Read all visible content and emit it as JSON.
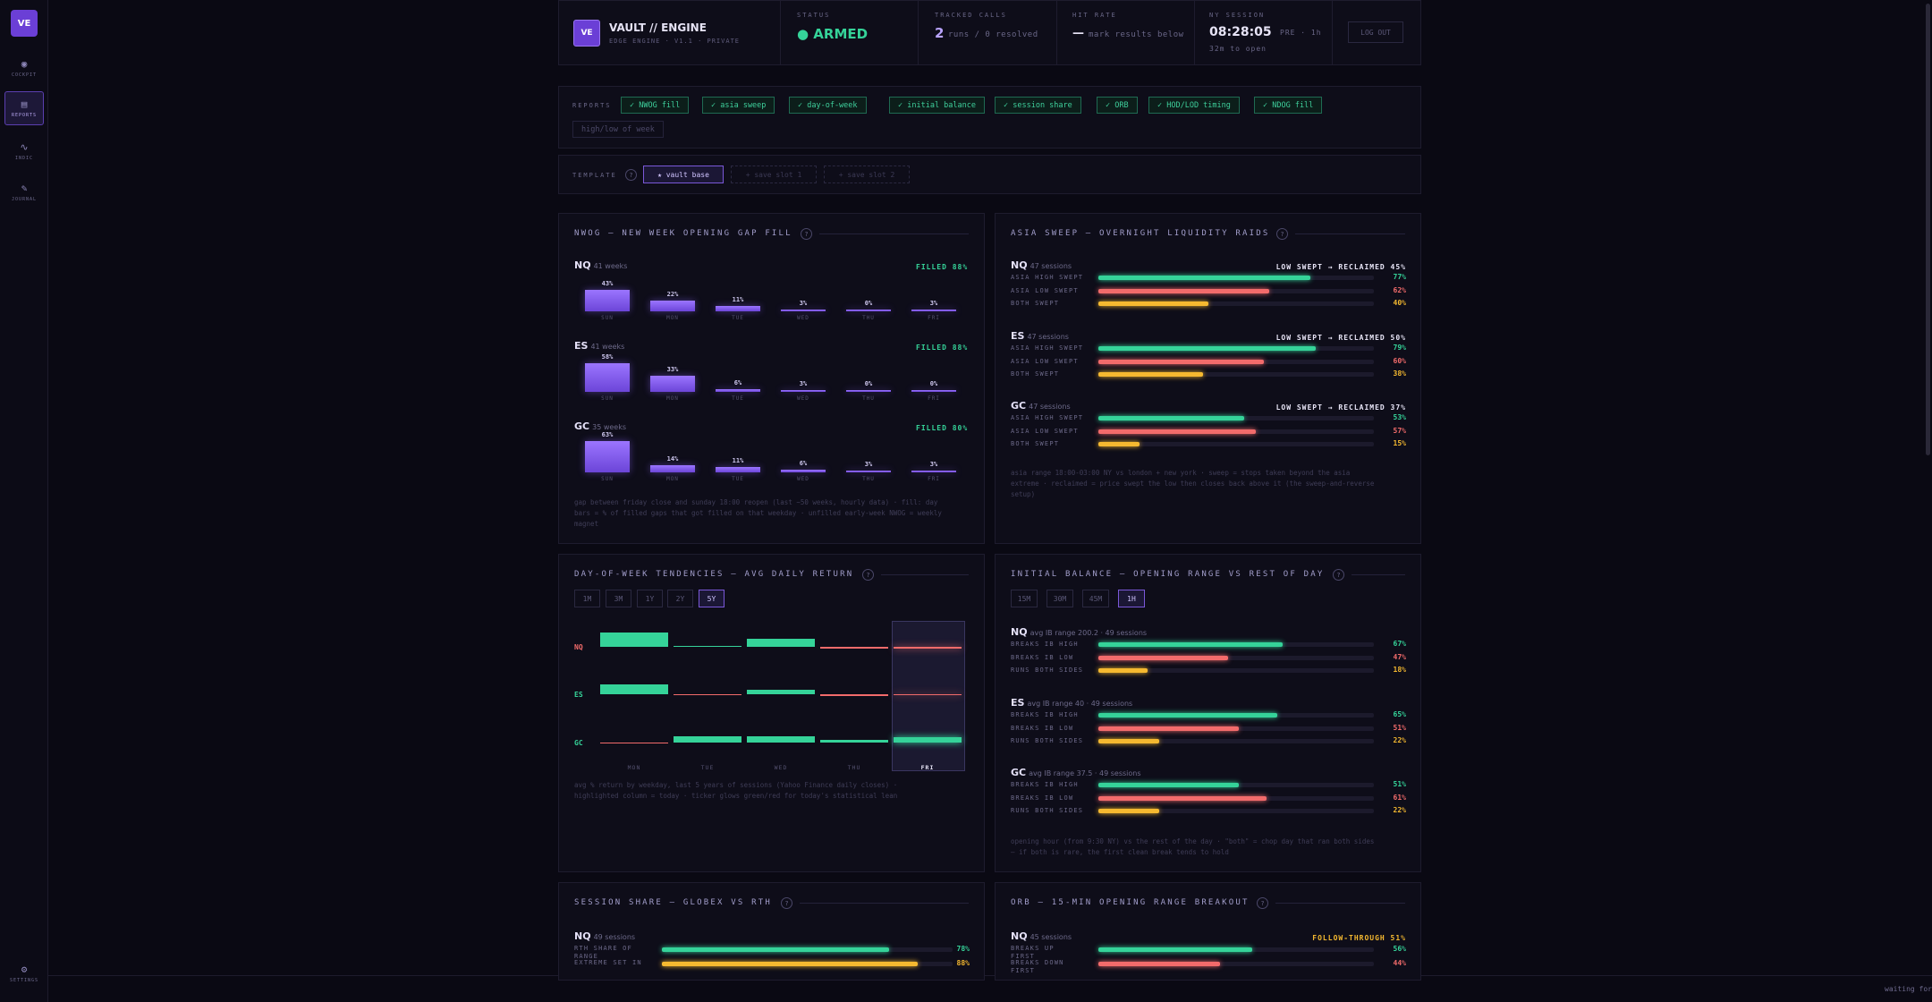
{
  "sidebar": {
    "logo": "VE",
    "items": [
      {
        "label": "COCKPIT",
        "icon": "◉"
      },
      {
        "label": "REPORTS",
        "icon": "▤"
      },
      {
        "label": "INDIC",
        "icon": "∿"
      },
      {
        "label": "JOURNAL",
        "icon": "✎"
      }
    ],
    "settings": {
      "label": "SETTINGS",
      "icon": "⚙"
    }
  },
  "header": {
    "logo": "VE",
    "title": "VAULT // ENGINE",
    "subtitle": "EDGE ENGINE · V1.1 · PRIVATE",
    "status_label": "STATUS",
    "status_value": "● ARMED",
    "tracked_label": "TRACKED CALLS",
    "tracked_count": "2",
    "tracked_detail": "runs / 0 resolved",
    "hit_label": "HIT RATE",
    "hit_value": "—",
    "hit_detail": "mark results below",
    "session_label": "NY SESSION",
    "session_time": "08:28:05",
    "session_phase": "PRE · 1h",
    "session_open": "32m to open",
    "logout": "LOG OUT"
  },
  "reports": {
    "label": "REPORTS",
    "chips": [
      {
        "label": "✓ NWOG fill",
        "on": true
      },
      {
        "label": "✓ asia sweep",
        "on": true
      },
      {
        "label": "✓ day-of-week",
        "on": true
      },
      {
        "label": "✓ initial balance",
        "on": true
      },
      {
        "label": "✓ session share",
        "on": true
      },
      {
        "label": "✓ ORB",
        "on": true
      },
      {
        "label": "✓ HOD/LOD timing",
        "on": true
      },
      {
        "label": "✓ NDOG fill",
        "on": true
      },
      {
        "label": "high/low of week",
        "on": false
      }
    ]
  },
  "template": {
    "label": "TEMPLATE",
    "help": "?",
    "slots": [
      "★ vault base",
      "+ save slot 1",
      "+ save slot 2"
    ]
  },
  "nwog": {
    "title": "NWOG — NEW WEEK OPENING GAP FILL",
    "help": "?",
    "days": [
      "SUN",
      "MON",
      "TUE",
      "WED",
      "THU",
      "FRI"
    ],
    "instruments": [
      {
        "sym": "NQ",
        "weeks": "41 weeks",
        "filled": "FILLED 88%",
        "pct": [
          43,
          22,
          11,
          3,
          0,
          3
        ]
      },
      {
        "sym": "ES",
        "weeks": "41 weeks",
        "filled": "FILLED 88%",
        "pct": [
          58,
          33,
          6,
          3,
          0,
          0
        ]
      },
      {
        "sym": "GC",
        "weeks": "35 weeks",
        "filled": "FILLED 80%",
        "pct": [
          63,
          14,
          11,
          6,
          3,
          3
        ]
      }
    ],
    "note1": "gap between friday close and sunday 18:00 reopen (last ~50 weeks, hourly data) · fill: day",
    "note2": "bars = % of filled gaps that got filled on that weekday · unfilled early-week NWOG = weekly",
    "note3": "magnet"
  },
  "asia": {
    "title": "ASIA SWEEP — OVERNIGHT LIQUIDITY RAIDS",
    "help": "?",
    "rows": [
      "ASIA HIGH SWEPT",
      "ASIA LOW SWEPT",
      "BOTH SWEPT"
    ],
    "instruments": [
      {
        "sym": "NQ",
        "sessions": "47 sessions",
        "tag": "LOW SWEPT → RECLAIMED 45%",
        "vals": [
          77,
          62,
          40
        ]
      },
      {
        "sym": "ES",
        "sessions": "47 sessions",
        "tag": "LOW SWEPT → RECLAIMED 50%",
        "vals": [
          79,
          60,
          38
        ]
      },
      {
        "sym": "GC",
        "sessions": "47 sessions",
        "tag": "LOW SWEPT → RECLAIMED 37%",
        "vals": [
          53,
          57,
          15
        ]
      }
    ],
    "note1": "asia range 18:00-03:00 NY vs london + new york · sweep = stops taken beyond the asia",
    "note2": "extreme · reclaimed = price swept the low then closes back above it (the sweep-and-reverse",
    "note3": "setup)"
  },
  "dow": {
    "title": "DAY-OF-WEEK TENDENCIES — AVG DAILY RETURN",
    "help": "?",
    "ranges": [
      "1M",
      "3M",
      "1Y",
      "2Y",
      "5Y"
    ],
    "selected": "5Y",
    "days": [
      "MON",
      "TUE",
      "WED",
      "THU",
      "FRI"
    ],
    "instruments": [
      "NQ",
      "ES",
      "GC"
    ],
    "note1": "avg % return by weekday, last 5 years of sessions (Yahoo Finance daily closes) ·",
    "note2": "highlighted column = today · ticker glows green/red for today's statistical lean"
  },
  "ib": {
    "title": "INITIAL BALANCE — OPENING RANGE VS REST OF DAY",
    "help": "?",
    "ranges": [
      "15M",
      "30M",
      "45M",
      "1H"
    ],
    "selected": "1H",
    "rows": [
      "BREAKS IB HIGH",
      "BREAKS IB LOW",
      "RUNS BOTH SIDES"
    ],
    "instruments": [
      {
        "sym": "NQ",
        "info": "avg IB range 200.2 · 49 sessions",
        "vals": [
          67,
          47,
          18
        ]
      },
      {
        "sym": "ES",
        "info": "avg IB range 40 · 49 sessions",
        "vals": [
          65,
          51,
          22
        ]
      },
      {
        "sym": "GC",
        "info": "avg IB range 37.5 · 49 sessions",
        "vals": [
          51,
          61,
          22
        ]
      }
    ],
    "note1": "opening hour (from 9:30 NY) vs the rest of the day · \"both\" = chop day that ran both sides",
    "note2": "— if both is rare, the first clean break tends to hold"
  },
  "session": {
    "title": "SESSION SHARE — GLOBEX VS RTH",
    "help": "?",
    "instruments": [
      {
        "sym": "NQ",
        "sessions": "49 sessions",
        "rows": [
          "RTH SHARE OF RANGE",
          "EXTREME SET IN"
        ],
        "vals": [
          78,
          88
        ]
      }
    ]
  },
  "orb": {
    "title": "ORB — 15-MIN OPENING RANGE BREAKOUT",
    "help": "?",
    "instruments": [
      {
        "sym": "NQ",
        "sessions": "45 sessions",
        "tag": "FOLLOW-THROUGH 51%",
        "rows": [
          "BREAKS UP FIRST",
          "BREAKS DOWN FIRST"
        ],
        "vals": [
          56,
          44
        ]
      }
    ]
  },
  "footer": {
    "waiting": "waiting for"
  },
  "colors": {
    "green": "#35d399",
    "red": "#f26b6b",
    "yellow": "#f5b930",
    "purple": "#8b62f5"
  }
}
